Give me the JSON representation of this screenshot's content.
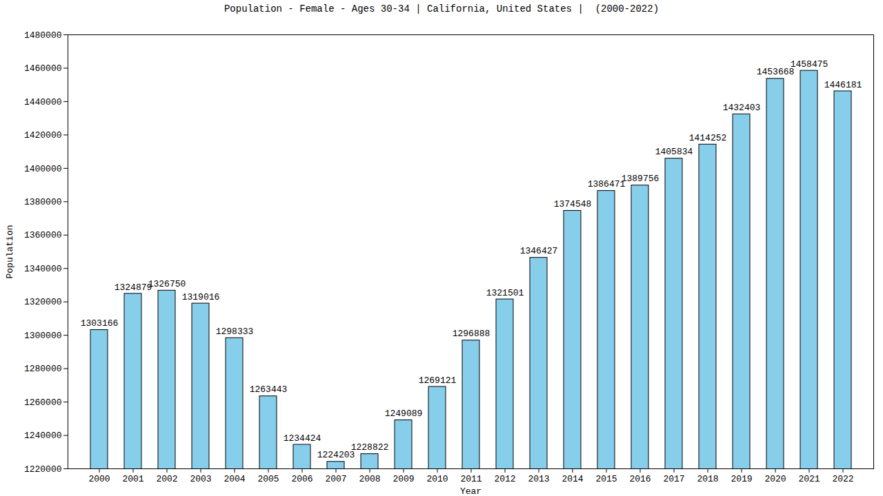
{
  "chart_data": {
    "type": "bar",
    "title": "Population - Female - Ages 30-34 | California, United States |  (2000-2022)",
    "x_label": "Year",
    "y_label": "Population",
    "categories": [
      "2000",
      "2001",
      "2002",
      "2003",
      "2004",
      "2005",
      "2006",
      "2007",
      "2008",
      "2009",
      "2010",
      "2011",
      "2012",
      "2013",
      "2014",
      "2015",
      "2016",
      "2017",
      "2018",
      "2019",
      "2020",
      "2021",
      "2022"
    ],
    "values": [
      1303166,
      1324879,
      1326750,
      1319016,
      1298333,
      1263443,
      1234424,
      1224203,
      1228822,
      1249089,
      1269121,
      1296888,
      1321501,
      1346427,
      1374548,
      1386471,
      1389756,
      1405834,
      1414252,
      1432403,
      1453668,
      1458475,
      1446181
    ],
    "color": "#87ceeb",
    "ylim": [
      1220000,
      1480000
    ],
    "yticks": [
      1220000,
      1240000,
      1260000,
      1280000,
      1300000,
      1320000,
      1340000,
      1360000,
      1380000,
      1400000,
      1420000,
      1440000,
      1460000,
      1480000
    ],
    "grid": false,
    "data_labels": true
  }
}
